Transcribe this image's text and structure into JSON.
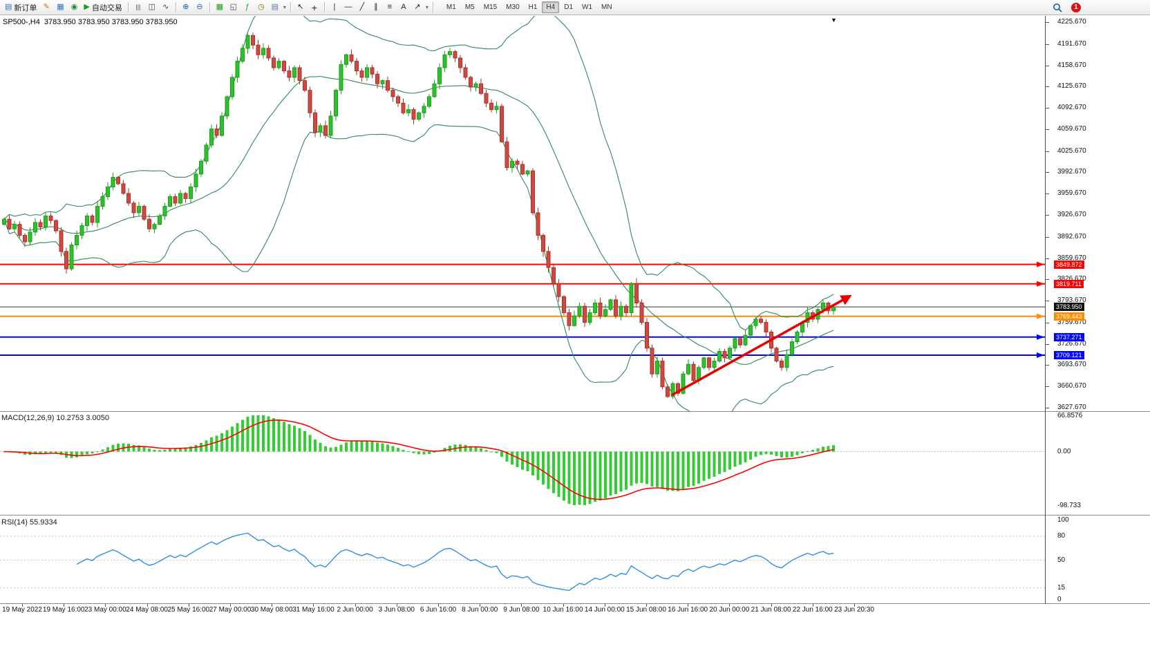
{
  "toolbar": {
    "items": [
      {
        "t": "btn",
        "name": "new-order-button",
        "icon": "▤",
        "icon_name": "new-order-icon",
        "icon_color": "#2f74c0",
        "label": "新订单"
      },
      {
        "t": "icon",
        "name": "metaeditor-button",
        "icon_name": "pencil-icon",
        "g": "✎",
        "c": "#b8860b"
      },
      {
        "t": "icon",
        "name": "charts-profile-button",
        "icon_name": "profile-chart-icon",
        "g": "▦",
        "c": "#2f74c0"
      },
      {
        "t": "icon",
        "name": "community-button",
        "icon_name": "globe-icon",
        "g": "◉",
        "c": "#1e8a3c"
      },
      {
        "t": "btn",
        "name": "autotrading-button",
        "icon": "▶",
        "icon_name": "autotrade-play-icon",
        "icon_color": "#17a017",
        "label": "自动交易"
      },
      {
        "t": "sep"
      },
      {
        "t": "icon",
        "name": "bar-chart-button",
        "icon_name": "bar-chart-icon",
        "g": "|||",
        "c": "#445",
        "fs": 9
      },
      {
        "t": "icon",
        "name": "candlestick-chart-button",
        "icon_name": "candlestick-icon",
        "g": "◫",
        "c": "#445"
      },
      {
        "t": "icon",
        "name": "line-chart-button",
        "icon_name": "line-chart-icon",
        "g": "∿",
        "c": "#445"
      },
      {
        "t": "sep"
      },
      {
        "t": "icon",
        "name": "zoom-in-button",
        "icon_name": "zoom-in-icon",
        "g": "⊕",
        "c": "#1b5fae"
      },
      {
        "t": "icon",
        "name": "zoom-out-button",
        "icon_name": "zoom-out-icon",
        "g": "⊖",
        "c": "#1b5fae"
      },
      {
        "t": "sep"
      },
      {
        "t": "icon",
        "name": "new-chart-button",
        "icon_name": "grid-icon",
        "g": "▦",
        "c": "#17a017"
      },
      {
        "t": "icon",
        "name": "tile-windows-button",
        "icon_name": "tile-windows-icon",
        "g": "◱",
        "c": "#445"
      },
      {
        "t": "icon",
        "name": "indicators-button",
        "icon_name": "indicator-function-icon",
        "g": "ƒ",
        "c": "#17a017"
      },
      {
        "t": "icon",
        "name": "periods-button",
        "icon_name": "clock-icon",
        "g": "◷",
        "c": "#8a6d1a"
      },
      {
        "t": "icon",
        "name": "templates-button",
        "icon_name": "template-icon",
        "g": "▤",
        "c": "#5a7ab0"
      },
      {
        "t": "caret"
      },
      {
        "t": "sep"
      },
      {
        "t": "icon",
        "name": "cursor-button",
        "icon_name": "cursor-icon",
        "g": "↖",
        "c": "#222"
      },
      {
        "t": "icon",
        "name": "crosshair-button",
        "icon_name": "crosshair-icon",
        "g": "+",
        "c": "#222",
        "fs": 14
      },
      {
        "t": "sep"
      },
      {
        "t": "icon",
        "name": "vertical-line-button",
        "icon_name": "vertical-line-icon",
        "g": "|",
        "c": "#222"
      },
      {
        "t": "icon",
        "name": "horizontal-line-button",
        "icon_name": "horizontal-line-icon",
        "g": "—",
        "c": "#222"
      },
      {
        "t": "icon",
        "name": "trendline-button",
        "icon_name": "trendline-icon",
        "g": "╱",
        "c": "#222"
      },
      {
        "t": "icon",
        "name": "channel-button",
        "icon_name": "channel-icon",
        "g": "∥",
        "c": "#222"
      },
      {
        "t": "icon",
        "name": "fibonacci-button",
        "icon_name": "fibonacci-icon",
        "g": "≡",
        "c": "#222"
      },
      {
        "t": "icon",
        "name": "text-button",
        "icon_name": "text-label-icon",
        "g": "A",
        "c": "#222"
      },
      {
        "t": "icon",
        "name": "arrow-tool-button",
        "icon_name": "arrow-tool-icon",
        "g": "↗",
        "c": "#222"
      },
      {
        "t": "caret"
      },
      {
        "t": "sep"
      }
    ],
    "timeframes": [
      "M1",
      "M5",
      "M15",
      "M30",
      "H1",
      "H4",
      "D1",
      "W1",
      "MN"
    ],
    "active_timeframe": "H4",
    "notification_count": "1"
  },
  "chart": {
    "symbol_header": "SP500-,H4  3783.950 3783.950 3783.950 3783.950",
    "caret": "▼",
    "price_axis_labels": [
      "4225.670",
      "4191.670",
      "4158.670",
      "4125.670",
      "4092.670",
      "4059.670",
      "4025.670",
      "3992.670",
      "3959.670",
      "3926.670",
      "3892.670",
      "3859.670",
      "3826.670",
      "3793.670",
      "3759.670",
      "3726.670",
      "3693.670",
      "3660.670",
      "3627.670"
    ],
    "hlines": [
      {
        "label": "3849.872",
        "price": 3849.872,
        "color": "#ff0000"
      },
      {
        "label": "3819.711",
        "price": 3819.711,
        "color": "#ff0000"
      },
      {
        "label": "3769.443",
        "price": 3769.443,
        "color": "#ff8c00"
      },
      {
        "label": "3737.271",
        "price": 3737.271,
        "color": "#0000ff"
      },
      {
        "label": "3709.121",
        "price": 3709.121,
        "color": "#0000ff"
      }
    ],
    "current_price": {
      "label": "3783.950",
      "price": 3783.95,
      "color": "#111111"
    },
    "trend_arrow": {
      "from": {
        "bar": 129,
        "price": 3648
      },
      "to": {
        "bar": 163,
        "price": 3800
      },
      "color": "#e80000"
    }
  },
  "macd_panel": {
    "header": "MACD(12,26,9) 10.2753 3.0050",
    "axis_labels": [
      "66.8576",
      "0.00",
      "-98.733"
    ],
    "axis_top_value": 66.8576,
    "axis_bottom_value": -98.733,
    "histogram_color": "#33cc33",
    "signal_color": "#ff0000"
  },
  "rsi_panel": {
    "header": "RSI(14) 55.9334",
    "axis_labels": [
      "100",
      "80",
      "50",
      "15",
      "0"
    ],
    "levels": [
      80,
      50,
      15
    ],
    "line_color": "#2e8fe8"
  },
  "time_axis": [
    "19 May 2022",
    "19 May 16:00",
    "23 May 00:00",
    "24 May 08:00",
    "25 May 16:00",
    "27 May 00:00",
    "30 May 08:00",
    "31 May 16:00",
    "2 Jun 00:00",
    "3 Jun 08:00",
    "6 Jun 16:00",
    "8 Jun 00:00",
    "9 Jun 08:00",
    "10 Jun 16:00",
    "14 Jun 00:00",
    "15 Jun 08:00",
    "16 Jun 16:00",
    "20 Jun 00:00",
    "21 Jun 08:00",
    "22 Jun 16:00",
    "23 Jun 20:30"
  ],
  "chart_data": {
    "type": "candlestick",
    "symbol": "SP500-",
    "timeframe": "H4",
    "price_range_visible": [
      3627.67,
      4225.67
    ],
    "closes": [
      3920,
      3905,
      3912,
      3895,
      3885,
      3900,
      3915,
      3908,
      3925,
      3918,
      3902,
      3870,
      3843,
      3880,
      3895,
      3910,
      3925,
      3915,
      3940,
      3955,
      3970,
      3985,
      3975,
      3960,
      3945,
      3930,
      3940,
      3920,
      3905,
      3912,
      3925,
      3940,
      3955,
      3945,
      3960,
      3952,
      3970,
      3990,
      4010,
      4035,
      4060,
      4050,
      4080,
      4110,
      4140,
      4165,
      4185,
      4205,
      4190,
      4175,
      4185,
      4170,
      4155,
      4165,
      4150,
      4140,
      4155,
      4135,
      4120,
      4085,
      4055,
      4065,
      4050,
      4080,
      4120,
      4160,
      4175,
      4165,
      4150,
      4140,
      4155,
      4145,
      4130,
      4135,
      4120,
      4110,
      4100,
      4085,
      4090,
      4075,
      4085,
      4095,
      4110,
      4130,
      4155,
      4175,
      4180,
      4170,
      4155,
      4140,
      4125,
      4130,
      4115,
      4100,
      4090,
      4095,
      4040,
      4000,
      4010,
      4005,
      3990,
      3995,
      3930,
      3895,
      3870,
      3845,
      3820,
      3800,
      3775,
      3755,
      3770,
      3785,
      3760,
      3775,
      3790,
      3770,
      3780,
      3795,
      3770,
      3785,
      3775,
      3820,
      3790,
      3760,
      3720,
      3680,
      3700,
      3660,
      3645,
      3665,
      3650,
      3680,
      3695,
      3670,
      3690,
      3705,
      3690,
      3700,
      3715,
      3705,
      3720,
      3735,
      3725,
      3740,
      3755,
      3765,
      3760,
      3745,
      3720,
      3700,
      3690,
      3710,
      3730,
      3745,
      3760,
      3775,
      3765,
      3780,
      3790,
      3778,
      3783.95
    ],
    "indicators": {
      "bollinger_bands": {
        "period": 20,
        "deviation": 2,
        "color": "#2e8b57"
      },
      "macd": {
        "fast": 12,
        "slow": 26,
        "signal": 9,
        "current_macd": "10.2753",
        "current_signal": "3.0050"
      },
      "rsi": {
        "period": 14,
        "current": "55.9334"
      }
    },
    "support_resistance_lines": [
      3849.872,
      3819.711,
      3769.443,
      3737.271,
      3709.121
    ],
    "current_price": 3783.95
  }
}
